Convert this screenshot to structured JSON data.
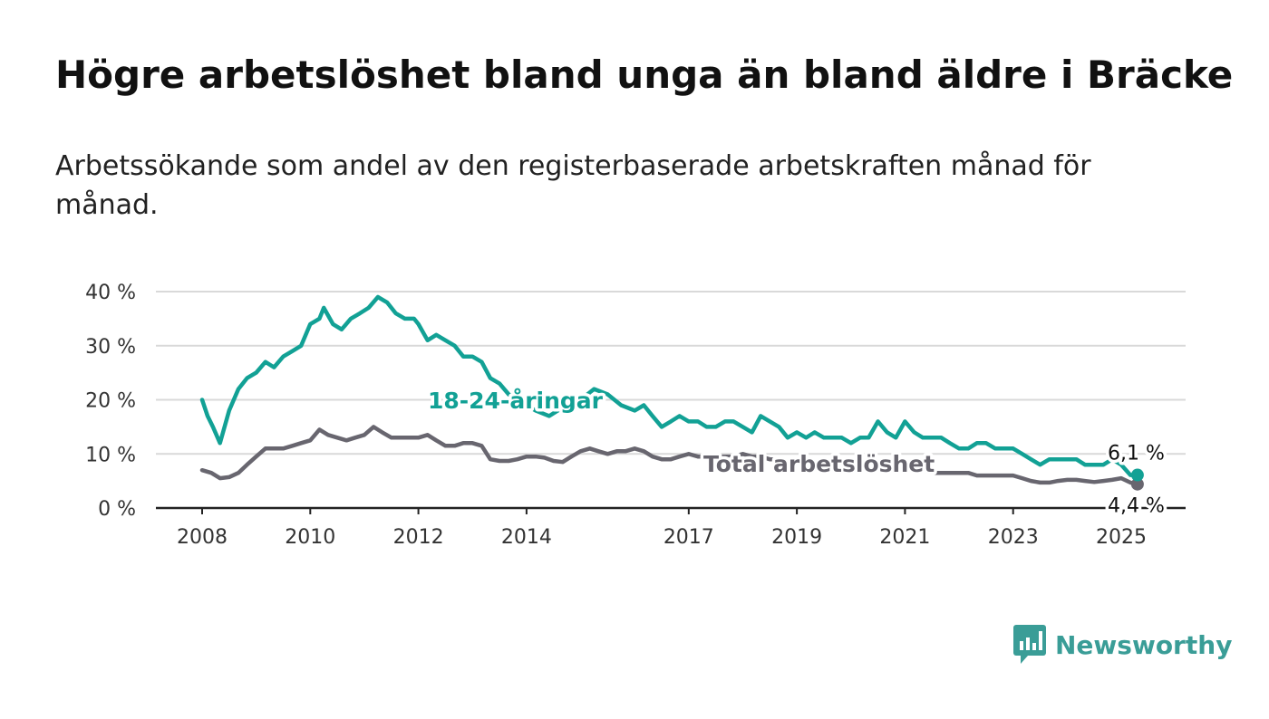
{
  "title": "Högre arbetslöshet bland unga än bland äldre i Bräcke",
  "subtitle": "Arbetssökande som andel av den registerbaserade arbetskraften månad för månad.",
  "brand": {
    "name": "Newsworthy",
    "icon": "bar-chart-icon",
    "color": "#3a9d97"
  },
  "chart_data": {
    "type": "line",
    "title": "Högre arbetslöshet bland unga än bland äldre i Bräcke",
    "subtitle": "Arbetssökande som andel av den registerbaserade arbetskraften månad för månad.",
    "xlabel": "",
    "ylabel": "",
    "ylim": [
      0,
      40
    ],
    "y_ticks": [
      0,
      10,
      20,
      30,
      40
    ],
    "y_tick_labels": [
      "0 %",
      "10 %",
      "20 %",
      "30 %",
      "40 %"
    ],
    "x_ticks": [
      2008,
      2010,
      2012,
      2014,
      2017,
      2019,
      2021,
      2023,
      2025
    ],
    "x_tick_labels": [
      "2008",
      "2010",
      "2012",
      "2014",
      "2017",
      "2019",
      "2021",
      "2023",
      "2025"
    ],
    "xlim": [
      2008.0,
      2025.4
    ],
    "grid": true,
    "series": [
      {
        "name": "18-24-åringar",
        "color": "#12a195",
        "end_label": "6,1 %",
        "points": [
          [
            2008.0,
            20
          ],
          [
            2008.1,
            17
          ],
          [
            2008.2,
            15
          ],
          [
            2008.33,
            12
          ],
          [
            2008.5,
            18
          ],
          [
            2008.67,
            22
          ],
          [
            2008.83,
            24
          ],
          [
            2009.0,
            25
          ],
          [
            2009.17,
            27
          ],
          [
            2009.33,
            26
          ],
          [
            2009.5,
            28
          ],
          [
            2009.67,
            29
          ],
          [
            2009.83,
            30
          ],
          [
            2010.0,
            34
          ],
          [
            2010.17,
            35
          ],
          [
            2010.25,
            37
          ],
          [
            2010.42,
            34
          ],
          [
            2010.58,
            33
          ],
          [
            2010.75,
            35
          ],
          [
            2010.92,
            36
          ],
          [
            2011.08,
            37
          ],
          [
            2011.25,
            39
          ],
          [
            2011.42,
            38
          ],
          [
            2011.58,
            36
          ],
          [
            2011.75,
            35
          ],
          [
            2011.92,
            35
          ],
          [
            2012.0,
            34
          ],
          [
            2012.17,
            31
          ],
          [
            2012.33,
            32
          ],
          [
            2012.5,
            31
          ],
          [
            2012.67,
            30
          ],
          [
            2012.83,
            28
          ],
          [
            2013.0,
            28
          ],
          [
            2013.17,
            27
          ],
          [
            2013.33,
            24
          ],
          [
            2013.5,
            23
          ],
          [
            2013.67,
            21
          ],
          [
            2013.83,
            20
          ],
          [
            2014.0,
            19
          ],
          [
            2014.17,
            18
          ],
          [
            2014.42,
            17
          ],
          [
            2014.58,
            18
          ],
          [
            2014.75,
            19
          ],
          [
            2015.0,
            20
          ],
          [
            2015.25,
            22
          ],
          [
            2015.5,
            21
          ],
          [
            2015.75,
            19
          ],
          [
            2016.0,
            18
          ],
          [
            2016.17,
            19
          ],
          [
            2016.33,
            17
          ],
          [
            2016.5,
            15
          ],
          [
            2016.67,
            16
          ],
          [
            2016.83,
            17
          ],
          [
            2017.0,
            16
          ],
          [
            2017.17,
            16
          ],
          [
            2017.33,
            15
          ],
          [
            2017.5,
            15
          ],
          [
            2017.67,
            16
          ],
          [
            2017.83,
            16
          ],
          [
            2018.0,
            15
          ],
          [
            2018.17,
            14
          ],
          [
            2018.33,
            17
          ],
          [
            2018.5,
            16
          ],
          [
            2018.67,
            15
          ],
          [
            2018.83,
            13
          ],
          [
            2019.0,
            14
          ],
          [
            2019.17,
            13
          ],
          [
            2019.33,
            14
          ],
          [
            2019.5,
            13
          ],
          [
            2019.67,
            13
          ],
          [
            2019.83,
            13
          ],
          [
            2020.0,
            12
          ],
          [
            2020.17,
            13
          ],
          [
            2020.33,
            13
          ],
          [
            2020.5,
            16
          ],
          [
            2020.67,
            14
          ],
          [
            2020.83,
            13
          ],
          [
            2021.0,
            16
          ],
          [
            2021.17,
            14
          ],
          [
            2021.33,
            13
          ],
          [
            2021.5,
            13
          ],
          [
            2021.67,
            13
          ],
          [
            2021.83,
            12
          ],
          [
            2022.0,
            11
          ],
          [
            2022.17,
            11
          ],
          [
            2022.33,
            12
          ],
          [
            2022.5,
            12
          ],
          [
            2022.67,
            11
          ],
          [
            2022.83,
            11
          ],
          [
            2023.0,
            11
          ],
          [
            2023.17,
            10
          ],
          [
            2023.33,
            9
          ],
          [
            2023.5,
            8
          ],
          [
            2023.67,
            9
          ],
          [
            2023.83,
            9
          ],
          [
            2024.0,
            9
          ],
          [
            2024.17,
            9
          ],
          [
            2024.33,
            8
          ],
          [
            2024.5,
            8
          ],
          [
            2024.67,
            8
          ],
          [
            2024.83,
            9
          ],
          [
            2025.0,
            8
          ],
          [
            2025.17,
            6.1
          ],
          [
            2025.3,
            6.1
          ]
        ]
      },
      {
        "name": "Total arbetslöshet",
        "color": "#68666f",
        "end_label": "4,4 %",
        "points": [
          [
            2008.0,
            7
          ],
          [
            2008.17,
            6.5
          ],
          [
            2008.33,
            5.5
          ],
          [
            2008.5,
            5.7
          ],
          [
            2008.67,
            6.5
          ],
          [
            2008.83,
            8
          ],
          [
            2009.0,
            9.5
          ],
          [
            2009.17,
            11
          ],
          [
            2009.33,
            11
          ],
          [
            2009.5,
            11
          ],
          [
            2009.67,
            11.5
          ],
          [
            2009.83,
            12
          ],
          [
            2010.0,
            12.5
          ],
          [
            2010.17,
            14.5
          ],
          [
            2010.33,
            13.5
          ],
          [
            2010.5,
            13
          ],
          [
            2010.67,
            12.5
          ],
          [
            2010.83,
            13
          ],
          [
            2011.0,
            13.5
          ],
          [
            2011.17,
            15
          ],
          [
            2011.33,
            14
          ],
          [
            2011.5,
            13
          ],
          [
            2011.67,
            13
          ],
          [
            2011.83,
            13
          ],
          [
            2012.0,
            13
          ],
          [
            2012.17,
            13.5
          ],
          [
            2012.33,
            12.5
          ],
          [
            2012.5,
            11.5
          ],
          [
            2012.67,
            11.5
          ],
          [
            2012.83,
            12
          ],
          [
            2013.0,
            12
          ],
          [
            2013.17,
            11.5
          ],
          [
            2013.33,
            9
          ],
          [
            2013.5,
            8.7
          ],
          [
            2013.67,
            8.7
          ],
          [
            2013.83,
            9
          ],
          [
            2014.0,
            9.5
          ],
          [
            2014.17,
            9.5
          ],
          [
            2014.33,
            9.3
          ],
          [
            2014.5,
            8.7
          ],
          [
            2014.67,
            8.5
          ],
          [
            2014.83,
            9.5
          ],
          [
            2015.0,
            10.5
          ],
          [
            2015.17,
            11
          ],
          [
            2015.33,
            10.5
          ],
          [
            2015.5,
            10
          ],
          [
            2015.67,
            10.5
          ],
          [
            2015.83,
            10.5
          ],
          [
            2016.0,
            11
          ],
          [
            2016.17,
            10.5
          ],
          [
            2016.33,
            9.5
          ],
          [
            2016.5,
            9
          ],
          [
            2016.67,
            9
          ],
          [
            2016.83,
            9.5
          ],
          [
            2017.0,
            10
          ],
          [
            2017.17,
            9.5
          ],
          [
            2017.33,
            9.5
          ],
          [
            2017.5,
            9.5
          ],
          [
            2017.67,
            9.5
          ],
          [
            2017.83,
            9.5
          ],
          [
            2018.0,
            10
          ],
          [
            2018.17,
            9.5
          ],
          [
            2018.33,
            9.5
          ],
          [
            2018.5,
            9
          ],
          [
            2018.67,
            9
          ],
          [
            2018.83,
            8.5
          ],
          [
            2019.0,
            8.5
          ],
          [
            2019.17,
            8
          ],
          [
            2019.33,
            8
          ],
          [
            2019.5,
            8
          ],
          [
            2019.67,
            7.5
          ],
          [
            2019.83,
            7.5
          ],
          [
            2020.0,
            7.5
          ],
          [
            2020.17,
            7.5
          ],
          [
            2020.33,
            7.5
          ],
          [
            2020.5,
            8
          ],
          [
            2020.67,
            7.5
          ],
          [
            2020.83,
            7
          ],
          [
            2021.0,
            7
          ],
          [
            2021.17,
            7
          ],
          [
            2021.33,
            7
          ],
          [
            2021.5,
            6.5
          ],
          [
            2021.67,
            6.5
          ],
          [
            2021.83,
            6.5
          ],
          [
            2022.0,
            6.5
          ],
          [
            2022.17,
            6.5
          ],
          [
            2022.33,
            6
          ],
          [
            2022.5,
            6
          ],
          [
            2022.67,
            6
          ],
          [
            2022.83,
            6
          ],
          [
            2023.0,
            6
          ],
          [
            2023.17,
            5.5
          ],
          [
            2023.33,
            5
          ],
          [
            2023.5,
            4.7
          ],
          [
            2023.67,
            4.7
          ],
          [
            2023.83,
            5
          ],
          [
            2024.0,
            5.2
          ],
          [
            2024.17,
            5.2
          ],
          [
            2024.33,
            5
          ],
          [
            2024.5,
            4.8
          ],
          [
            2024.67,
            5
          ],
          [
            2024.83,
            5.2
          ],
          [
            2025.0,
            5.5
          ],
          [
            2025.17,
            4.7
          ],
          [
            2025.3,
            4.4
          ]
        ]
      }
    ]
  }
}
